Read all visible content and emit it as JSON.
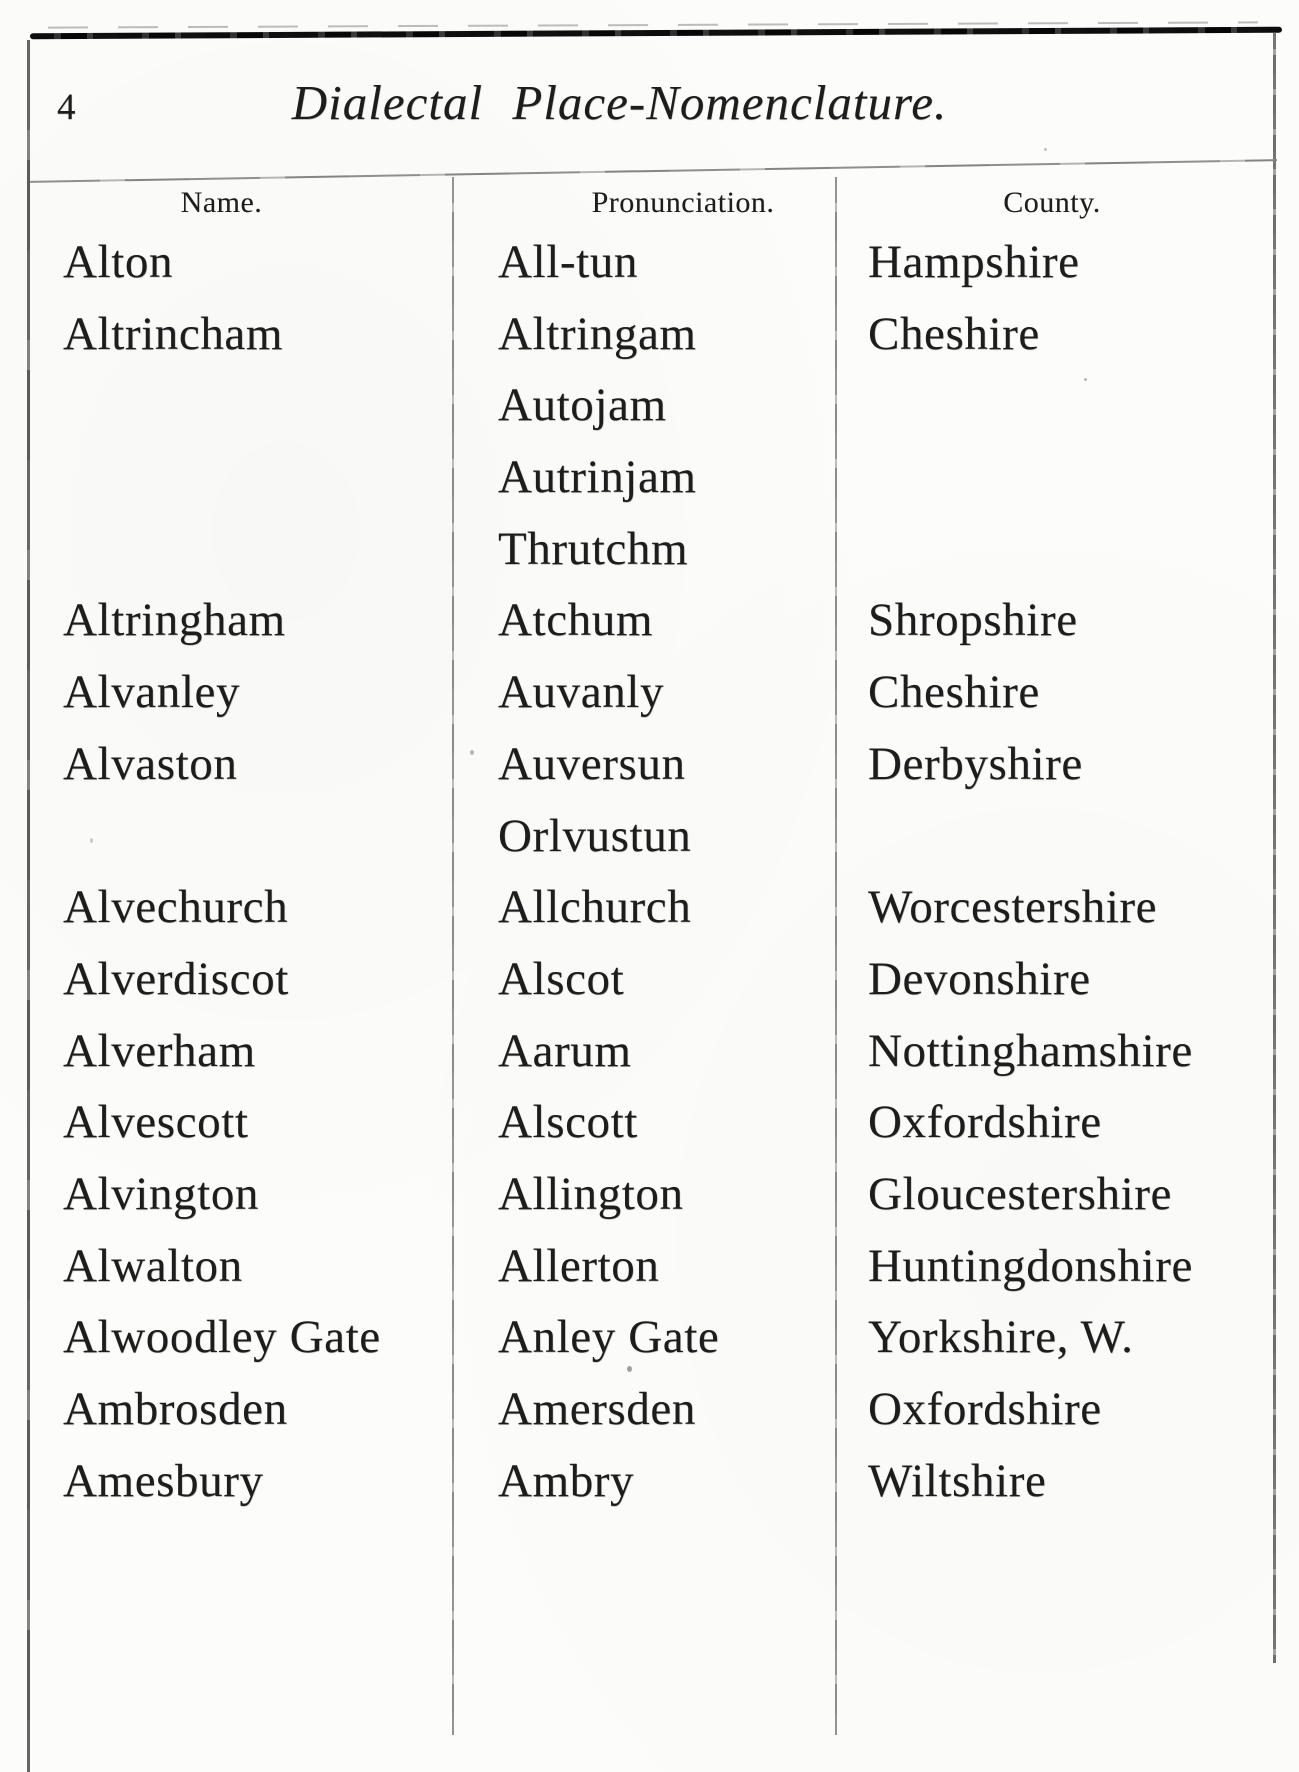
{
  "page": {
    "number": "4",
    "title": "Dialectal Place-Nomenclature."
  },
  "table": {
    "columns": [
      "Name.",
      "Pronunciation.",
      "County."
    ],
    "rows": [
      {
        "name": "Alton",
        "pronunciation": "All-tun",
        "county": "Hampshire"
      },
      {
        "name": "Altrincham",
        "pronunciation": "Altringam",
        "county": "Cheshire"
      },
      {
        "name": "",
        "pronunciation": "Autojam",
        "county": ""
      },
      {
        "name": "",
        "pronunciation": "Autrinjam",
        "county": ""
      },
      {
        "name": "",
        "pronunciation": "Thrutchm",
        "county": ""
      },
      {
        "name": "Altringham",
        "pronunciation": "Atchum",
        "county": "Shropshire"
      },
      {
        "name": "Alvanley",
        "pronunciation": "Auvanly",
        "county": "Cheshire"
      },
      {
        "name": "Alvaston",
        "pronunciation": "Auversun",
        "county": "Derbyshire"
      },
      {
        "name": "",
        "pronunciation": "Orlvustun",
        "county": ""
      },
      {
        "name": "Alvechurch",
        "pronunciation": "Allchurch",
        "county": "Worcestershire"
      },
      {
        "name": "Alverdiscot",
        "pronunciation": "Alscot",
        "county": "Devonshire"
      },
      {
        "name": "Alverham",
        "pronunciation": "Aarum",
        "county": "Nottinghamshire"
      },
      {
        "name": "Alvescott",
        "pronunciation": "Alscott",
        "county": "Oxfordshire"
      },
      {
        "name": "Alvington",
        "pronunciation": "Allington",
        "county": "Gloucestershire"
      },
      {
        "name": "Alwalton",
        "pronunciation": "Allerton",
        "county": "Huntingdonshire"
      },
      {
        "name": "Alwoodley Gate",
        "pronunciation": "Anley Gate",
        "county": "Yorkshire, W."
      },
      {
        "name": "Ambrosden",
        "pronunciation": "Amersden",
        "county": "Oxfordshire"
      },
      {
        "name": "Amesbury",
        "pronunciation": "Ambry",
        "county": "Wiltshire"
      }
    ]
  }
}
